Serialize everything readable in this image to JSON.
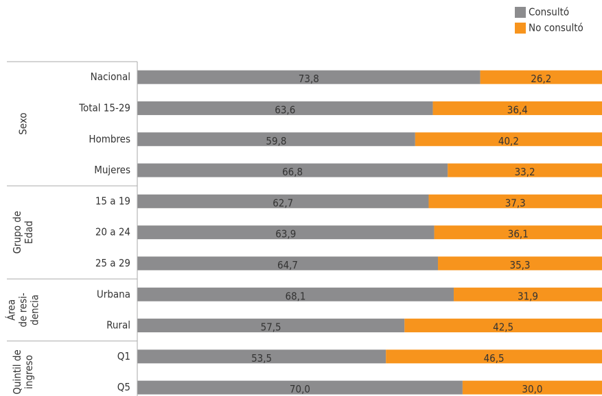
{
  "chart_data": {
    "type": "stacked-bar-horizontal",
    "categories": [
      "Nacional",
      "Total 15-29",
      "Hombres",
      "Mujeres",
      "15 a 19",
      "20 a 24",
      "25 a 29",
      "Urbana",
      "Rural",
      "Q1",
      "Q5"
    ],
    "groups": [
      {
        "label": [
          "Sexo"
        ],
        "rows": 4
      },
      {
        "label": [
          "Grupo de",
          "Edad"
        ],
        "rows": 3
      },
      {
        "label": [
          "Área",
          "de resi-",
          "dencia"
        ],
        "rows": 2
      },
      {
        "label": [
          "Quintil de",
          "ingreso"
        ],
        "rows": 2
      }
    ],
    "series": [
      {
        "name": "Consultó",
        "color": "#8c8c8e",
        "values": [
          73.8,
          63.6,
          59.8,
          66.8,
          62.7,
          63.9,
          64.7,
          68.1,
          57.5,
          53.5,
          70.0
        ],
        "value_labels": [
          "73,8",
          "63,6",
          "59,8",
          "66,8",
          "62,7",
          "63,9",
          "64,7",
          "68,1",
          "57,5",
          "53,5",
          "70,0"
        ]
      },
      {
        "name": "No consultó",
        "color": "#f7941d",
        "values": [
          26.2,
          36.4,
          40.2,
          33.2,
          37.3,
          36.1,
          35.3,
          31.9,
          42.5,
          46.5,
          30.0
        ],
        "value_labels": [
          "26,2",
          "36,4",
          "40,2",
          "33,2",
          "37,3",
          "36,1",
          "35,3",
          "31,9",
          "42,5",
          "46,5",
          "30,0"
        ]
      }
    ],
    "xlim": [
      0,
      100
    ],
    "legend": "top-right"
  }
}
